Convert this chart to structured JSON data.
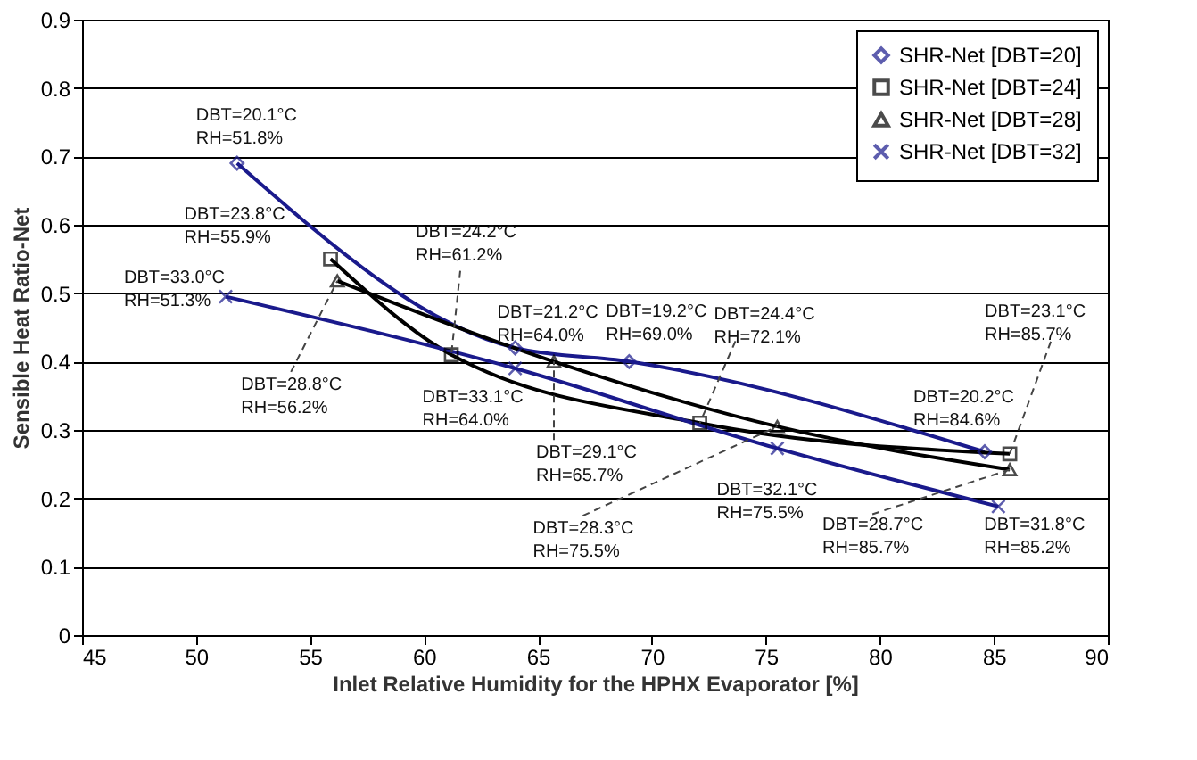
{
  "chart_data": {
    "type": "line",
    "xlabel": "Inlet Relative Humidity for the HPHX Evaporator [%]",
    "ylabel": "Sensible Heat Ratio-Net",
    "xlim": [
      45,
      90
    ],
    "xticks": [
      45,
      50,
      55,
      60,
      65,
      70,
      75,
      80,
      85,
      90
    ],
    "ylim": [
      0,
      0.9
    ],
    "yticks": [
      0,
      0.1,
      0.2,
      0.3,
      0.4,
      0.5,
      0.6,
      0.7,
      0.8,
      0.9
    ],
    "grid": "y",
    "legend": "top right",
    "series": [
      {
        "name": "SHR-Net [DBT=20]",
        "color": "#1a1a8c",
        "marker": "diamond",
        "x": [
          51.8,
          64.0,
          69.0,
          84.6
        ],
        "values": [
          0.69,
          0.42,
          0.4,
          0.268
        ]
      },
      {
        "name": "SHR-Net [DBT=24]",
        "color": "#000000",
        "marker": "square",
        "x": [
          55.9,
          61.2,
          72.1,
          85.7
        ],
        "values": [
          0.55,
          0.41,
          0.31,
          0.265
        ]
      },
      {
        "name": "SHR-Net [DBT=28]",
        "color": "#000000",
        "marker": "triangle",
        "x": [
          56.2,
          65.7,
          75.5,
          85.7
        ],
        "values": [
          0.518,
          0.4,
          0.305,
          0.242
        ]
      },
      {
        "name": "SHR-Net [DBT=32]",
        "color": "#1a1a8c",
        "marker": "cross",
        "x": [
          51.3,
          64.0,
          75.5,
          85.2
        ],
        "values": [
          0.495,
          0.39,
          0.273,
          0.188
        ]
      }
    ],
    "annotations": [
      {
        "text": "DBT=20.1°C\nRH=51.8%",
        "x": 51.8,
        "y": 0.69
      },
      {
        "text": "DBT=23.8°C\nRH=55.9%",
        "x": 55.9,
        "y": 0.55
      },
      {
        "text": "DBT=24.2°C\nRH=61.2%",
        "x": 61.2,
        "y": 0.41
      },
      {
        "text": "DBT=33.0°C\nRH=51.3%",
        "x": 51.3,
        "y": 0.495
      },
      {
        "text": "DBT=28.8°C\nRH=56.2%",
        "x": 56.2,
        "y": 0.518
      },
      {
        "text": "DBT=21.2°C\nRH=64.0%",
        "x": 64.0,
        "y": 0.42
      },
      {
        "text": "DBT=19.2°C\nRH=69.0%",
        "x": 69.0,
        "y": 0.4
      },
      {
        "text": "DBT=33.1°C\nRH=64.0%",
        "x": 64.0,
        "y": 0.39
      },
      {
        "text": "DBT=24.4°C\nRH=72.1%",
        "x": 72.1,
        "y": 0.31
      },
      {
        "text": "DBT=29.1°C\nRH=65.7%",
        "x": 65.7,
        "y": 0.4
      },
      {
        "text": "DBT=28.3°C\nRH=75.5%",
        "x": 75.5,
        "y": 0.305
      },
      {
        "text": "DBT=32.1°C\nRH=75.5%",
        "x": 75.5,
        "y": 0.273
      },
      {
        "text": "DBT=28.7°C\nRH=85.7%",
        "x": 85.7,
        "y": 0.242
      },
      {
        "text": "DBT=31.8°C\nRH=85.2%",
        "x": 85.2,
        "y": 0.188
      },
      {
        "text": "DBT=20.2°C\nRH=84.6%",
        "x": 84.6,
        "y": 0.268
      },
      {
        "text": "DBT=23.1°C\nRH=85.7%",
        "x": 85.7,
        "y": 0.265
      }
    ]
  }
}
